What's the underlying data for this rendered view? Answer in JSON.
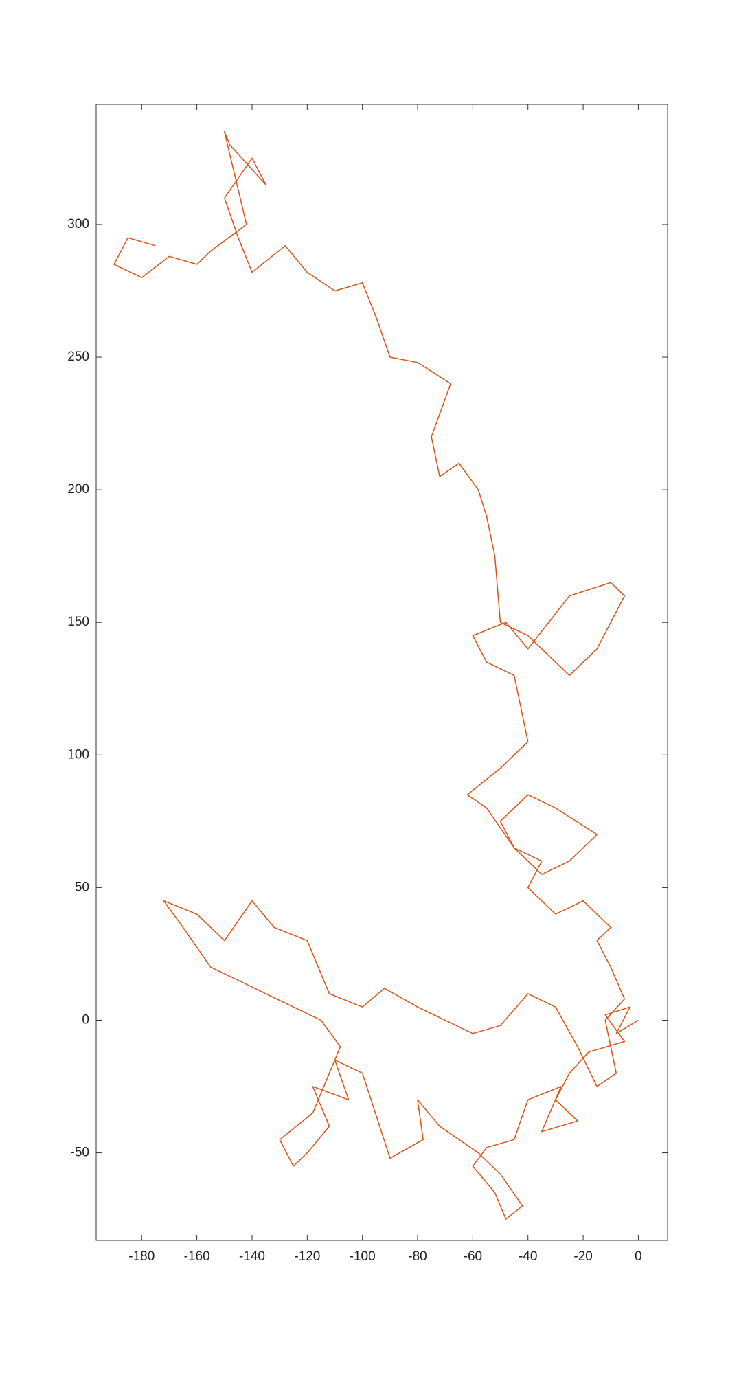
{
  "chart_data": {
    "type": "line",
    "x": [
      0,
      -8,
      -3,
      -12,
      -5,
      -18,
      -25,
      -30,
      -22,
      -35,
      -28,
      -40,
      -45,
      -55,
      -60,
      -52,
      -48,
      -42,
      -50,
      -58,
      -65,
      -72,
      -80,
      -78,
      -90,
      -100,
      -110,
      -105,
      -118,
      -112,
      -120,
      -125,
      -130,
      -118,
      -108,
      -115,
      -125,
      -135,
      -145,
      -155,
      -165,
      -172,
      -160,
      -150,
      -140,
      -132,
      -120,
      -112,
      -100,
      -92,
      -80,
      -70,
      -60,
      -50,
      -40,
      -30,
      -22,
      -15,
      -8,
      -12,
      -5,
      -10,
      -15,
      -10,
      -20,
      -30,
      -40,
      -35,
      -45,
      -50,
      -40,
      -30,
      -15,
      -25,
      -35,
      -45,
      -55,
      -62,
      -50,
      -40,
      -42,
      -45,
      -55,
      -60,
      -48,
      -40,
      -25,
      -10,
      -5,
      -15,
      -25,
      -40,
      -50,
      -52,
      -55,
      -58,
      -65,
      -72,
      -75,
      -68,
      -80,
      -90,
      -95,
      -100,
      -110,
      -120,
      -128,
      -140,
      -145,
      -150,
      -140,
      -135,
      -148,
      -150,
      -142,
      -155,
      -160,
      -170,
      -180,
      -190,
      -185,
      -175
    ],
    "series": [
      {
        "color": "#d95319",
        "values": [
          0,
          -5,
          5,
          2,
          -8,
          -12,
          -20,
          -30,
          -38,
          -42,
          -25,
          -30,
          -45,
          -48,
          -55,
          -65,
          -75,
          -70,
          -58,
          -50,
          -45,
          -40,
          -30,
          -45,
          -52,
          -20,
          -15,
          -30,
          -25,
          -40,
          -50,
          -55,
          -45,
          -35,
          -10,
          0,
          5,
          10,
          15,
          20,
          35,
          45,
          40,
          30,
          45,
          35,
          30,
          10,
          5,
          12,
          5,
          0,
          -5,
          -2,
          10,
          5,
          -10,
          -25,
          -20,
          0,
          8,
          20,
          30,
          35,
          45,
          40,
          50,
          60,
          65,
          75,
          85,
          80,
          70,
          60,
          55,
          65,
          80,
          85,
          95,
          105,
          115,
          130,
          135,
          145,
          150,
          140,
          160,
          165,
          160,
          140,
          130,
          145,
          150,
          175,
          190,
          200,
          210,
          205,
          220,
          240,
          248,
          250,
          265,
          278,
          275,
          282,
          292,
          282,
          295,
          310,
          325,
          315,
          330,
          335,
          300,
          290,
          285,
          288,
          280,
          285,
          295,
          292
        ]
      }
    ],
    "xlim": [
      -196.5,
      10.6
    ],
    "ylim": [
      -83,
      345.3
    ],
    "xticks": [
      -180,
      -160,
      -140,
      -120,
      -100,
      -80,
      -60,
      -40,
      -20,
      0
    ],
    "yticks": [
      -50,
      0,
      50,
      100,
      150,
      200,
      250,
      300
    ],
    "grid": false
  }
}
